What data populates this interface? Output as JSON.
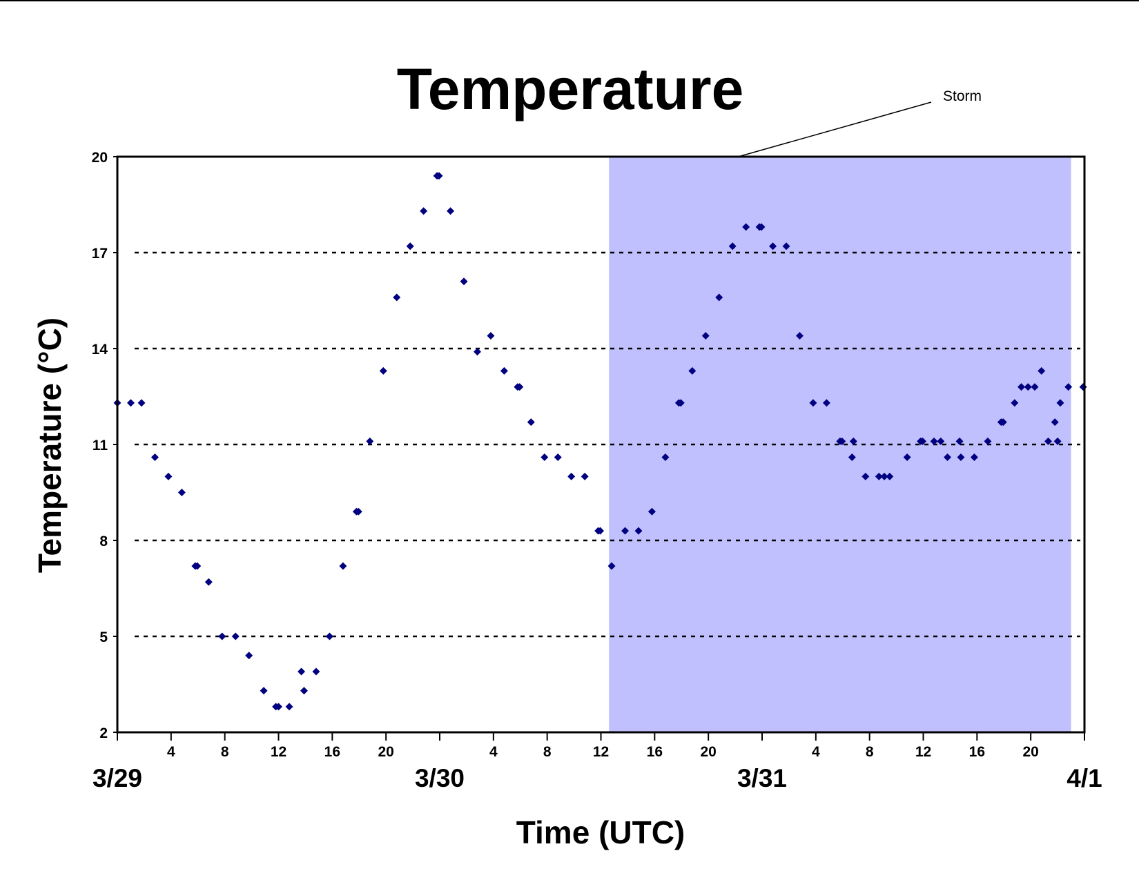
{
  "chart_data": {
    "type": "scatter",
    "title": "Temperature",
    "xlabel": "Time (UTC)",
    "ylabel": "Temperature (°C)",
    "ylim": [
      2,
      20
    ],
    "y_ticks": [
      "2",
      "5",
      "8",
      "11",
      "14",
      "17",
      "20"
    ],
    "x_range_hours": [
      0,
      72
    ],
    "x_hour_ticks": [
      {
        "h": 4,
        "label": "4"
      },
      {
        "h": 8,
        "label": "8"
      },
      {
        "h": 12,
        "label": "12"
      },
      {
        "h": 16,
        "label": "16"
      },
      {
        "h": 20,
        "label": "20"
      },
      {
        "h": 28,
        "label": "4"
      },
      {
        "h": 32,
        "label": "8"
      },
      {
        "h": 36,
        "label": "12"
      },
      {
        "h": 40,
        "label": "16"
      },
      {
        "h": 44,
        "label": "20"
      },
      {
        "h": 52,
        "label": "4"
      },
      {
        "h": 56,
        "label": "8"
      },
      {
        "h": 60,
        "label": "12"
      },
      {
        "h": 64,
        "label": "16"
      },
      {
        "h": 68,
        "label": "20"
      }
    ],
    "date_labels": [
      {
        "h": 0,
        "label": "3/29"
      },
      {
        "h": 24,
        "label": "3/30"
      },
      {
        "h": 48,
        "label": "3/31"
      },
      {
        "h": 72,
        "label": "4/1"
      }
    ],
    "grid": "horizontal dotted lines at y ticks",
    "colors": {
      "marker": "#000080",
      "storm": "#c0c0ff",
      "grid": "#000000"
    },
    "shaded_region": {
      "label": "Storm",
      "x_start_hours": 36.6,
      "x_end_hours": 71
    },
    "points": [
      [
        0,
        12.3
      ],
      [
        1,
        12.3
      ],
      [
        1.8,
        12.3
      ],
      [
        2.8,
        10.6
      ],
      [
        3.8,
        10.0
      ],
      [
        4.8,
        9.5
      ],
      [
        5.8,
        7.2
      ],
      [
        5.95,
        7.2
      ],
      [
        6.8,
        6.7
      ],
      [
        7.8,
        5.0
      ],
      [
        8.8,
        5.0
      ],
      [
        9.8,
        4.4
      ],
      [
        10.9,
        3.3
      ],
      [
        11.8,
        2.8
      ],
      [
        12.0,
        2.8
      ],
      [
        12.8,
        2.8
      ],
      [
        13.7,
        3.9
      ],
      [
        13.9,
        3.3
      ],
      [
        14.8,
        3.9
      ],
      [
        15.8,
        5.0
      ],
      [
        16.8,
        7.2
      ],
      [
        17.8,
        8.9
      ],
      [
        17.95,
        8.9
      ],
      [
        18.8,
        11.1
      ],
      [
        19.8,
        13.3
      ],
      [
        20.8,
        15.6
      ],
      [
        21.8,
        17.2
      ],
      [
        22.8,
        18.3
      ],
      [
        23.8,
        19.4
      ],
      [
        23.95,
        19.4
      ],
      [
        24.8,
        18.3
      ],
      [
        25.8,
        16.1
      ],
      [
        26.8,
        13.9
      ],
      [
        27.8,
        14.4
      ],
      [
        28.8,
        13.3
      ],
      [
        29.8,
        12.8
      ],
      [
        29.95,
        12.8
      ],
      [
        30.8,
        11.7
      ],
      [
        31.8,
        10.6
      ],
      [
        32.8,
        10.6
      ],
      [
        33.8,
        10.0
      ],
      [
        34.8,
        10.0
      ],
      [
        35.8,
        8.3
      ],
      [
        35.95,
        8.3
      ],
      [
        36.8,
        7.2
      ],
      [
        37.8,
        8.3
      ],
      [
        38.8,
        8.3
      ],
      [
        39.8,
        8.9
      ],
      [
        40.8,
        10.6
      ],
      [
        41.8,
        12.3
      ],
      [
        41.95,
        12.3
      ],
      [
        42.8,
        13.3
      ],
      [
        43.8,
        14.4
      ],
      [
        44.8,
        15.6
      ],
      [
        45.8,
        17.2
      ],
      [
        46.8,
        17.8
      ],
      [
        47.8,
        17.8
      ],
      [
        47.95,
        17.8
      ],
      [
        48.8,
        17.2
      ],
      [
        49.8,
        17.2
      ],
      [
        50.8,
        14.4
      ],
      [
        51.8,
        12.3
      ],
      [
        52.8,
        12.3
      ],
      [
        53.8,
        11.1
      ],
      [
        53.95,
        11.1
      ],
      [
        54.7,
        10.6
      ],
      [
        54.8,
        11.1
      ],
      [
        55.7,
        10.0
      ],
      [
        56.7,
        10.0
      ],
      [
        57.1,
        10.0
      ],
      [
        57.5,
        10.0
      ],
      [
        58.8,
        10.6
      ],
      [
        59.8,
        11.1
      ],
      [
        59.95,
        11.1
      ],
      [
        60.8,
        11.1
      ],
      [
        61.3,
        11.1
      ],
      [
        61.8,
        10.6
      ],
      [
        62.7,
        11.1
      ],
      [
        62.8,
        10.6
      ],
      [
        63.8,
        10.6
      ],
      [
        64.8,
        11.1
      ],
      [
        65.8,
        11.7
      ],
      [
        65.95,
        11.7
      ],
      [
        66.8,
        12.3
      ],
      [
        67.3,
        12.8
      ],
      [
        67.8,
        12.8
      ],
      [
        68.3,
        12.8
      ],
      [
        68.8,
        13.3
      ],
      [
        69.3,
        11.1
      ],
      [
        69.8,
        11.7
      ],
      [
        70.0,
        11.1
      ],
      [
        70.2,
        12.3
      ],
      [
        70.8,
        12.8
      ],
      [
        71.9,
        12.8
      ]
    ]
  }
}
